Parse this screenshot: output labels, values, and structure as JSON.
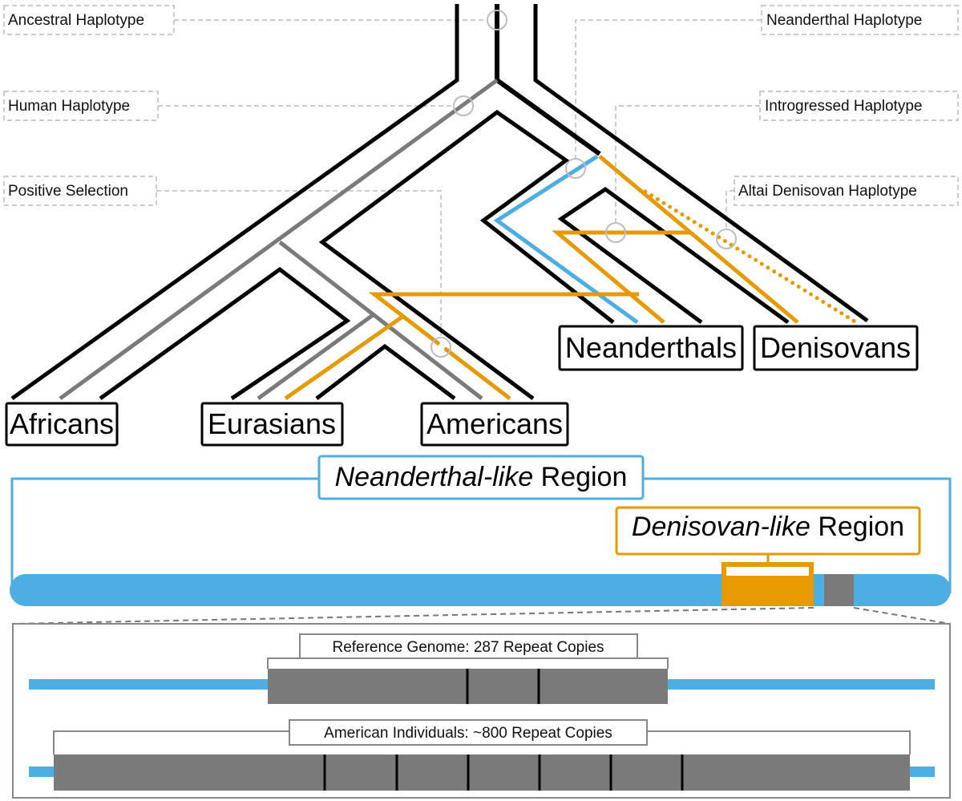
{
  "annotations": {
    "ancestral": "Ancestral Haplotype",
    "human": "Human Haplotype",
    "positive_selection": "Positive Selection",
    "neanderthal": "Neanderthal Haplotype",
    "introgressed": "Introgressed Haplotype",
    "altai_denisovan": "Altai Denisovan Haplotype"
  },
  "populations": {
    "africans": "Africans",
    "eurasians": "Eurasians",
    "americans": "Americans",
    "neanderthals": "Neanderthals",
    "denisovans": "Denisovans"
  },
  "regions": {
    "neanderthal_italic": "Neanderthal-like",
    "neanderthal_rest": " Region",
    "denisovan_italic": "Denisovan-like",
    "denisovan_rest": " Region"
  },
  "repeats": {
    "reference": "Reference Genome: 287 Repeat Copies",
    "american": "American Individuals: ~800 Repeat Copies"
  },
  "colors": {
    "neanderthal_blue": "#4DAEE3",
    "denisovan_orange": "#E69A00",
    "human_gray": "#7A7A7A",
    "lineage_black": "#000000"
  }
}
